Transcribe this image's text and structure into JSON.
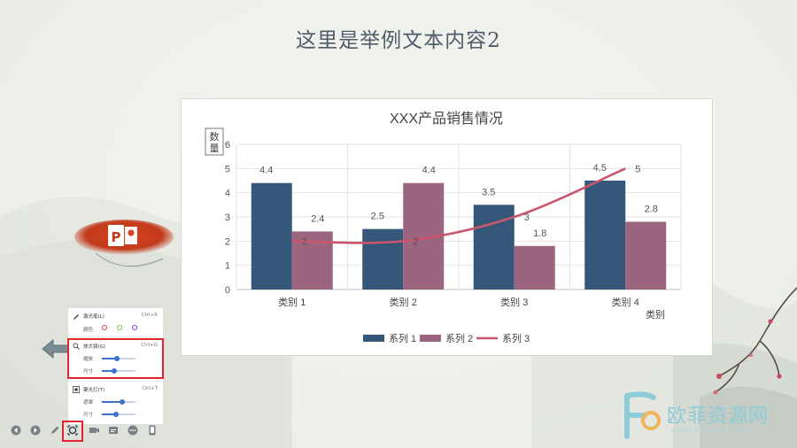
{
  "slide": {
    "title": "这里是举例文本内容2"
  },
  "chart_data": {
    "type": "bar",
    "title": "XXX产品销售情况",
    "ylabel": "数量",
    "xlabel": "类别",
    "categories": [
      "类别 1",
      "类别 2",
      "类别 3",
      "类别 4"
    ],
    "ylim": [
      0,
      6
    ],
    "yticks": [
      "0",
      "1",
      "2",
      "3",
      "4",
      "5",
      "6"
    ],
    "grid": true,
    "legend_position": "bottom",
    "series": [
      {
        "name": "系列 1",
        "type": "bar",
        "values": [
          4.4,
          2.5,
          3.5,
          4.5
        ],
        "labels": [
          "4.4",
          "2.5",
          "3.5",
          "4.5"
        ],
        "color": "#34577a"
      },
      {
        "name": "系列 2",
        "type": "bar",
        "values": [
          2.4,
          4.4,
          1.8,
          2.8
        ],
        "labels": [
          "2.4",
          "4.4",
          "1.8",
          "2.8"
        ],
        "color": "#9b6580"
      },
      {
        "name": "系列 3",
        "type": "line",
        "values": [
          2,
          2,
          3,
          5
        ],
        "labels": [
          "2",
          "2",
          "3",
          "5"
        ],
        "color": "#c8566c"
      }
    ]
  },
  "tool_panel": {
    "laser": {
      "label": "激光笔(L)",
      "shortcut": "Ctrl+R",
      "color_label": "颜色",
      "colors": [
        "#e23b3b",
        "#68c23a",
        "#8a3ad0"
      ]
    },
    "magnifier": {
      "label": "放大镜(G)",
      "shortcut": "Ctrl+G",
      "zoom_label": "缩放",
      "size_label": "尺寸",
      "zoom_level": 0.45,
      "size_level": 0.38
    },
    "spotlight": {
      "label": "聚光灯(T)",
      "shortcut": "Ctrl+T",
      "mask_label": "遮罩",
      "size_label": "尺寸",
      "mask_level": 0.6,
      "size_level": 0.42
    }
  },
  "bottom_toolbar": [
    "previous-icon",
    "next-icon",
    "pen-icon",
    "magnifier-tool-icon",
    "camera-icon",
    "subtitle-icon",
    "more-icon",
    "device-icon"
  ],
  "watermark": {
    "text": "欧菲资源网",
    "url": "www.office26.com"
  },
  "colors": {
    "highlight": "#e0262a",
    "accent_blue": "#3f6fd0"
  }
}
